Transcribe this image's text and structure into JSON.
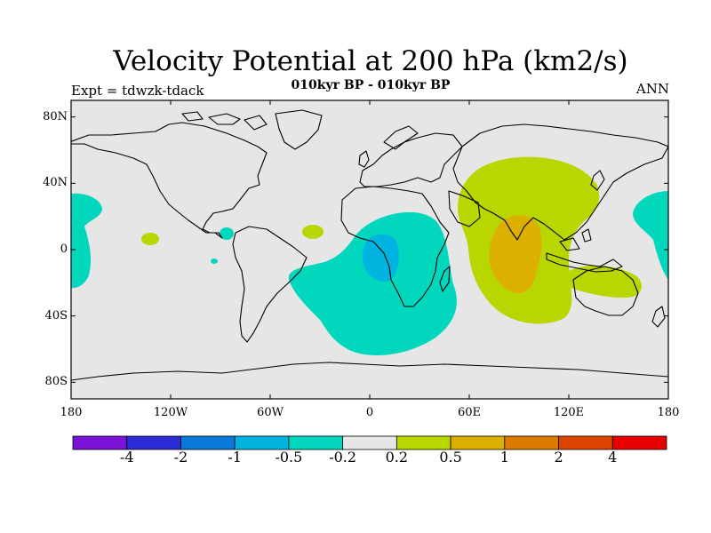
{
  "header": {
    "title": "Velocity Potential at 200 hPa (km2/s)",
    "subtitle": "010kyr BP - 010kyr BP",
    "left_label": "Expt = tdwzk-tdack",
    "right_label": "ANN"
  },
  "axes": {
    "lat_ticks": [
      {
        "label": "80N",
        "value": 80
      },
      {
        "label": "40N",
        "value": 40
      },
      {
        "label": "0",
        "value": 0
      },
      {
        "label": "40S",
        "value": -40
      },
      {
        "label": "80S",
        "value": -80
      }
    ],
    "lon_ticks": [
      {
        "label": "180",
        "value": -180
      },
      {
        "label": "120W",
        "value": -120
      },
      {
        "label": "60W",
        "value": -60
      },
      {
        "label": "0",
        "value": 0
      },
      {
        "label": "60E",
        "value": 60
      },
      {
        "label": "120E",
        "value": 120
      },
      {
        "label": "180",
        "value": 180
      }
    ]
  },
  "colorbar": {
    "colors": [
      "#7a12d8",
      "#2b2bd6",
      "#0a78d8",
      "#00b4e2",
      "#00d7bd",
      "#e6e6e6",
      "#b9d600",
      "#dcb000",
      "#dc7b00",
      "#dc4400",
      "#e60000"
    ],
    "labels": [
      "-4",
      "-2",
      "-1",
      "-0.5",
      "-0.2",
      "0.2",
      "0.5",
      "1",
      "2",
      "4"
    ]
  },
  "colors": {
    "background": "#e6e6e6",
    "neg_weak": "#00d7bd",
    "neg_mod": "#00b4e2",
    "pos_weak": "#b9d600",
    "pos_mod": "#dcb000"
  }
}
